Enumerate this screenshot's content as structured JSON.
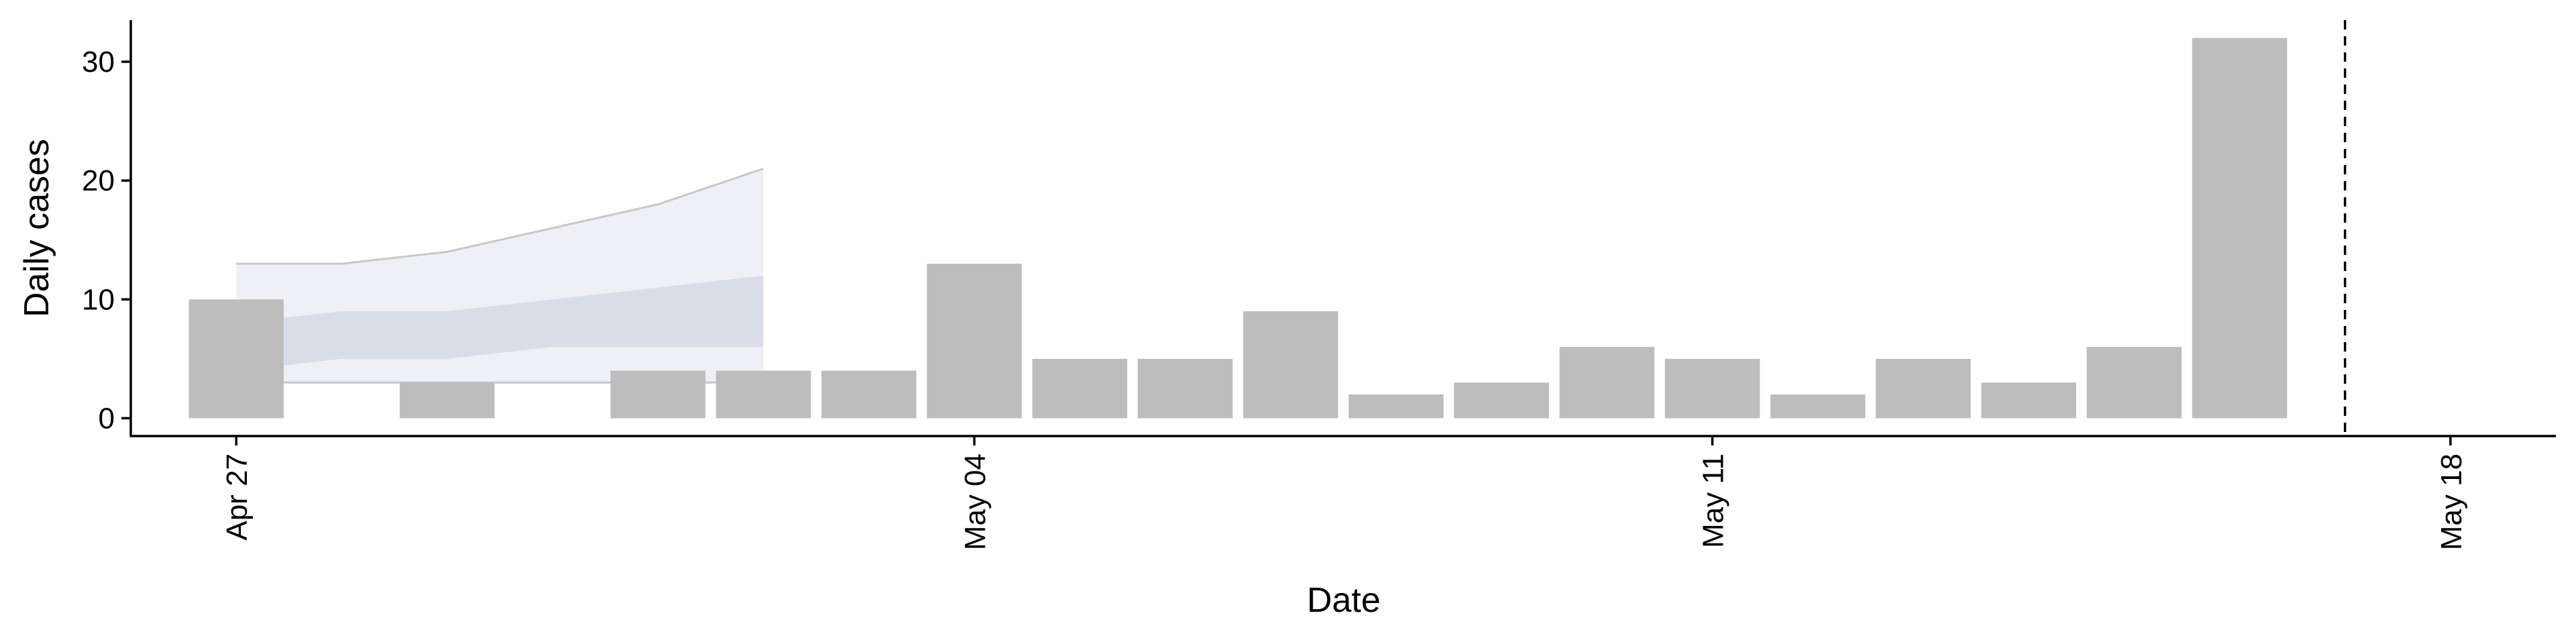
{
  "chart_data": {
    "type": "bar",
    "xlabel": "Date",
    "ylabel": "Daily cases",
    "x_ticks": [
      "Apr 27",
      "May 04",
      "May 11",
      "May 18"
    ],
    "y_ticks": [
      "0",
      "10",
      "20",
      "30"
    ],
    "ylim": [
      -1.5,
      33.5
    ],
    "xlim": [
      "2020-04-26",
      "2020-05-19"
    ],
    "grid": false,
    "bars": {
      "name": "Daily cases",
      "x": [
        "2020-04-27",
        "2020-04-28",
        "2020-04-29",
        "2020-04-30",
        "2020-05-01",
        "2020-05-02",
        "2020-05-03",
        "2020-05-04",
        "2020-05-05",
        "2020-05-06",
        "2020-05-07",
        "2020-05-08",
        "2020-05-09",
        "2020-05-10",
        "2020-05-11",
        "2020-05-12",
        "2020-05-13",
        "2020-05-14",
        "2020-05-15",
        "2020-05-16"
      ],
      "values": [
        10,
        0,
        3,
        0,
        4,
        4,
        4,
        13,
        5,
        5,
        9,
        2,
        3,
        6,
        5,
        2,
        5,
        3,
        6,
        32
      ]
    },
    "forecast_bands": {
      "x": [
        "2020-04-27",
        "2020-04-28",
        "2020-04-29",
        "2020-04-30",
        "2020-05-01",
        "2020-05-02"
      ],
      "outer": {
        "lower": [
          3,
          3,
          3,
          3,
          3,
          3
        ],
        "upper": [
          13,
          13,
          14,
          16,
          18,
          21
        ]
      },
      "inner": {
        "lower": [
          4,
          5,
          5,
          6,
          6,
          6
        ],
        "upper": [
          8,
          9,
          9,
          10,
          11,
          12
        ]
      }
    },
    "reference_line": {
      "x": "2020-05-17",
      "style": "dashed"
    },
    "colors": {
      "bar": "#bdbdbd",
      "band_outer": "#eef0f5",
      "band_inner": "#d9dde8",
      "band_edge": "#c8c8c8",
      "axis": "#000000"
    }
  }
}
